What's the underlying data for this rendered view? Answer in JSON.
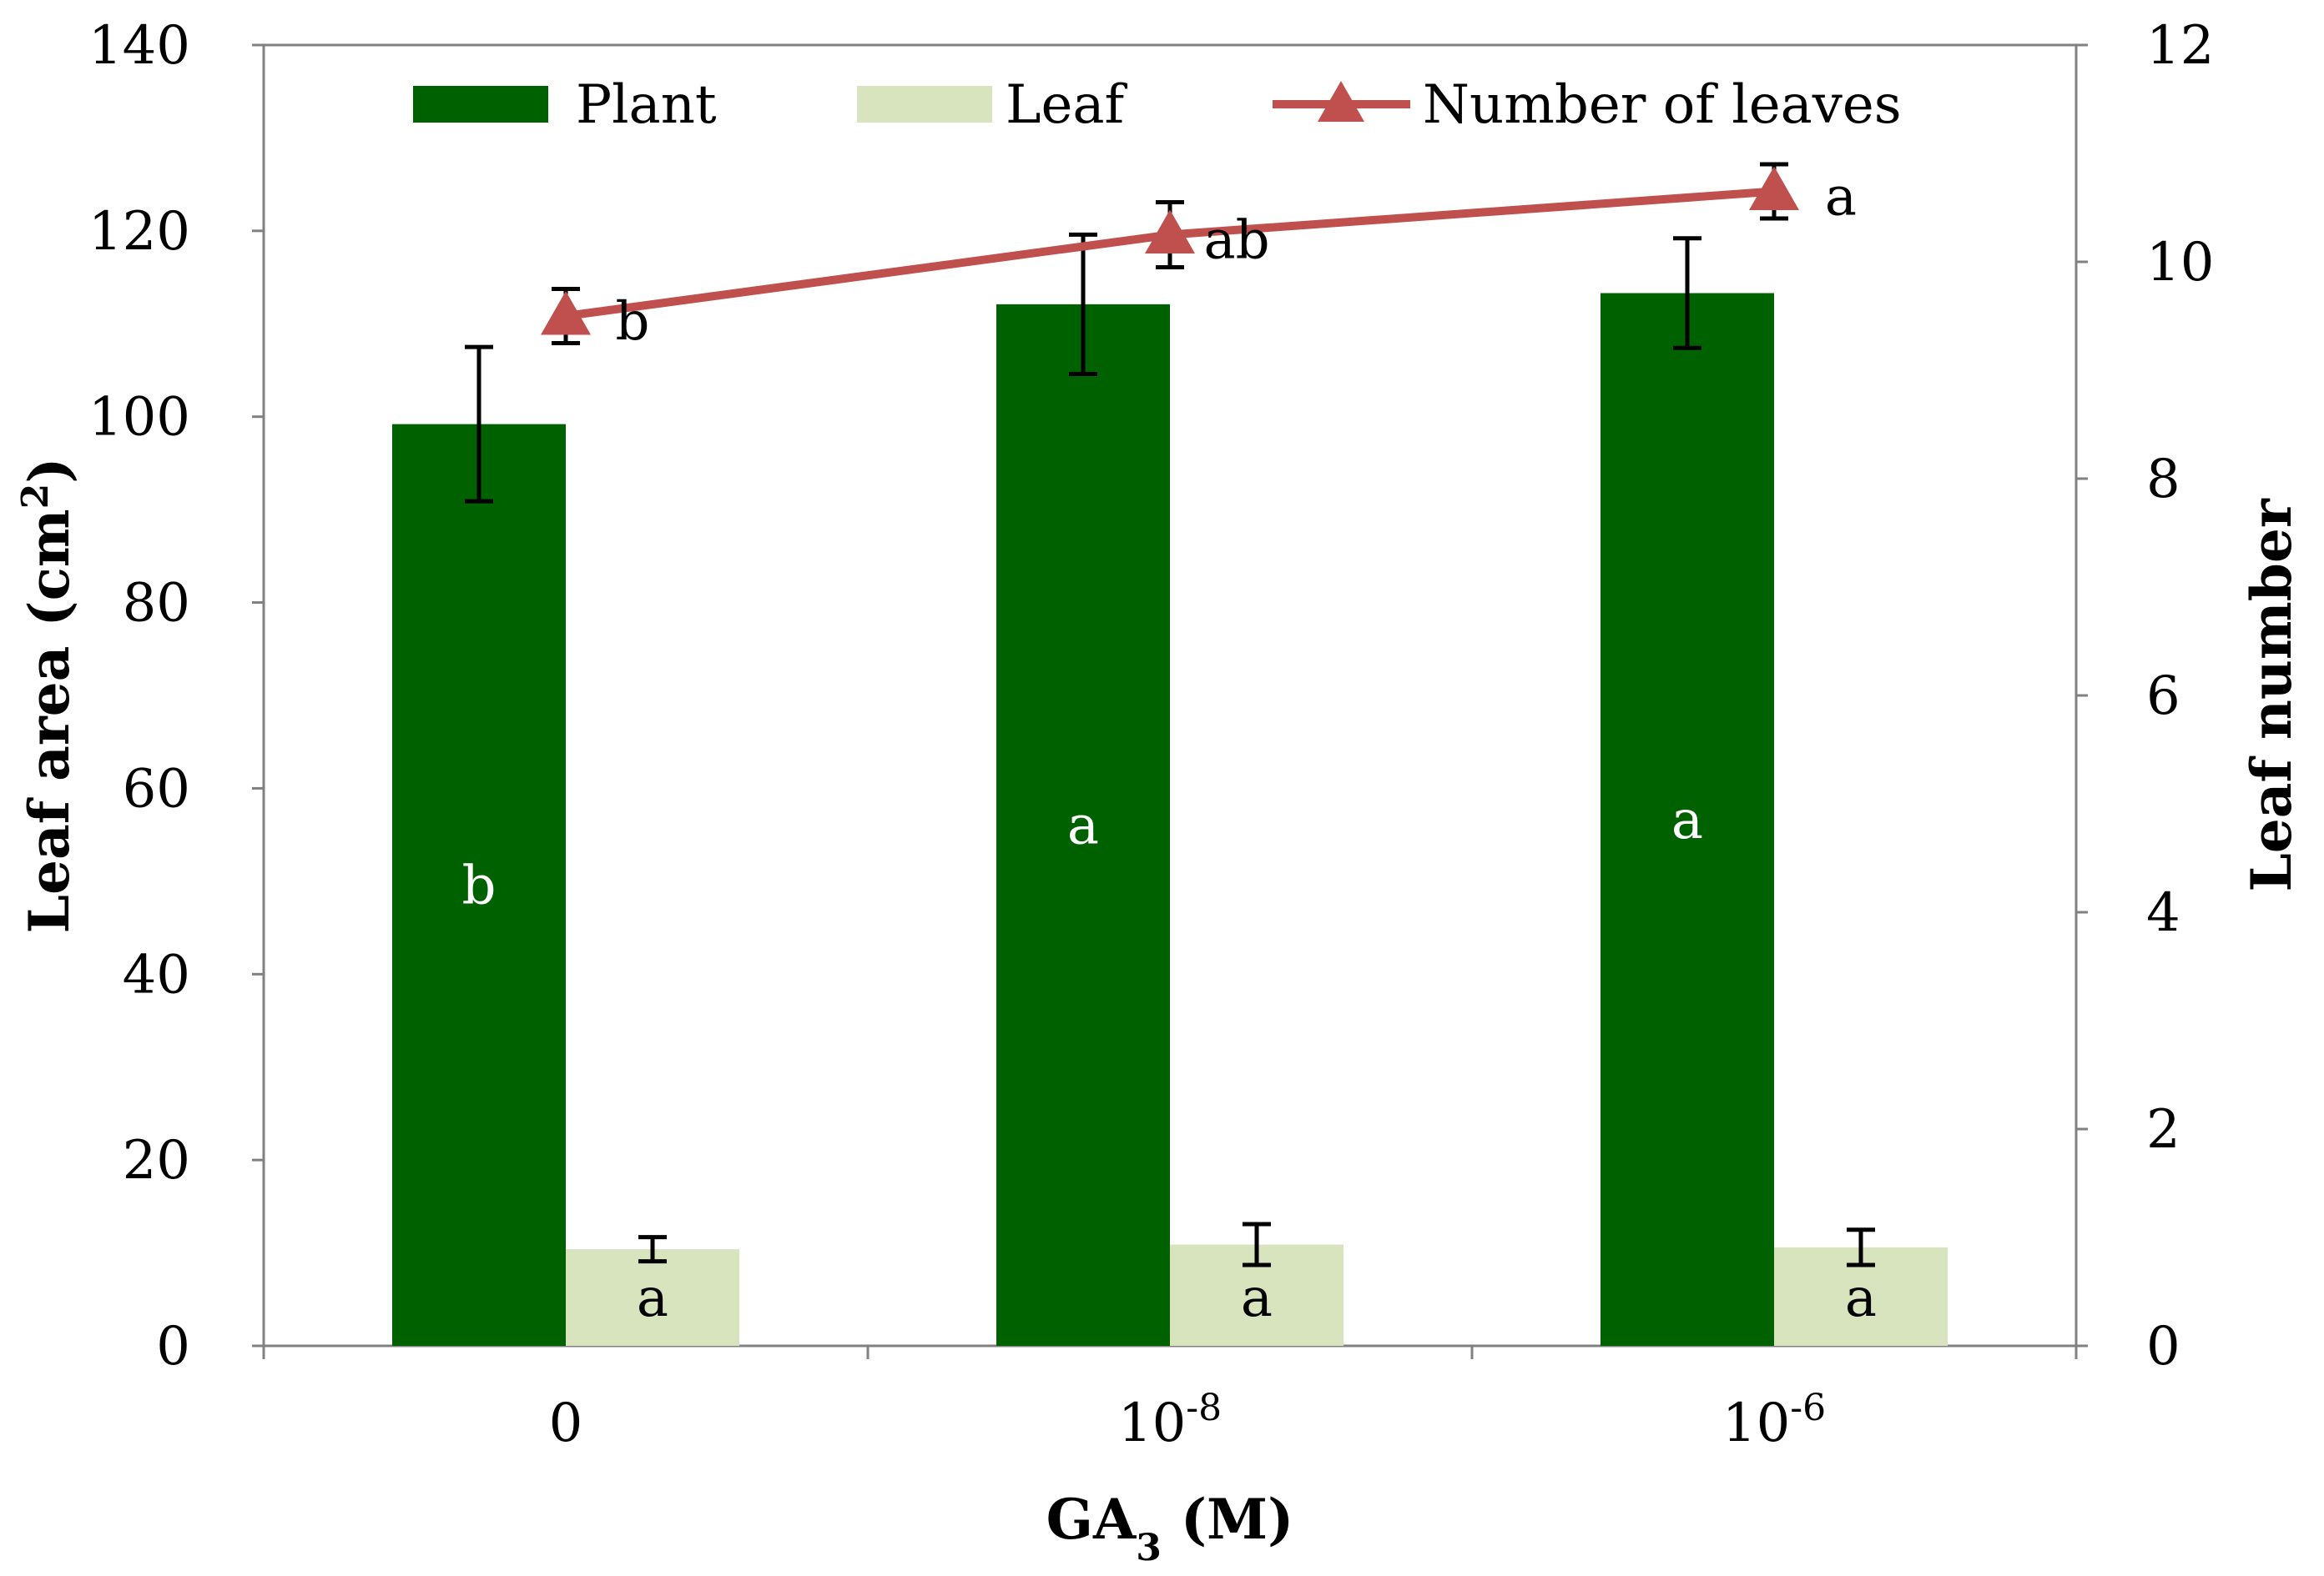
{
  "chart_data": {
    "type": "bar",
    "title": "",
    "categories": [
      {
        "base": "0",
        "exp": ""
      },
      {
        "base": "10",
        "exp": "-8"
      },
      {
        "base": "10",
        "exp": "-6"
      }
    ],
    "xlabel": {
      "main": "GA",
      "sub": "3",
      "suffix": " (M)"
    },
    "ylabel": {
      "main": "Leaf area  (cm",
      "sup": "2",
      "suffix": ")"
    },
    "y2label": "Leaf number",
    "ylim": [
      0,
      140
    ],
    "y2lim": [
      0,
      12
    ],
    "yticks": [
      "0",
      "20",
      "40",
      "60",
      "80",
      "100",
      "120",
      "140"
    ],
    "y2ticks": [
      "0",
      "2",
      "4",
      "6",
      "8",
      "10",
      "12"
    ],
    "series": [
      {
        "name": "Plant",
        "kind": "bar",
        "axis": "left",
        "color": "#006100",
        "values": [
          99.2,
          112.1,
          113.3
        ],
        "errors": [
          8.3,
          7.5,
          5.9
        ],
        "labels": [
          "b",
          "a",
          "a"
        ],
        "label_color": "#ffffff"
      },
      {
        "name": "Leaf",
        "kind": "bar",
        "axis": "left",
        "color": "#d7e4bd",
        "values": [
          10.4,
          10.9,
          10.6
        ],
        "errors": [
          1.3,
          2.2,
          1.9
        ],
        "labels": [
          "a",
          "a",
          "a"
        ],
        "label_color": "#000000"
      },
      {
        "name": "Number of leaves",
        "kind": "line",
        "axis": "right",
        "color": "#c0504d",
        "values": [
          9.5,
          10.25,
          10.65
        ],
        "errors": [
          0.25,
          0.3,
          0.25
        ],
        "labels": [
          "b",
          "ab",
          "a"
        ],
        "label_color": "#000000"
      }
    ],
    "legend": [
      "Plant",
      "Leaf",
      "Number of leaves"
    ],
    "legend_position": "top"
  }
}
